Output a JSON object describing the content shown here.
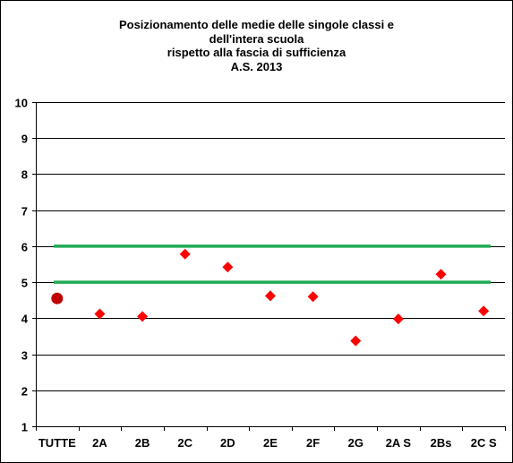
{
  "chart_data": {
    "type": "scatter",
    "title_lines": [
      "Posizionamento delle medie delle singole classi e",
      "dell'intera scuola",
      "rispetto alla fascia di sufficienza",
      "A.S. 2013"
    ],
    "xlabel": "",
    "ylabel": "",
    "ylim": [
      1,
      10
    ],
    "yticks": [
      1,
      2,
      3,
      4,
      5,
      6,
      7,
      8,
      9,
      10
    ],
    "grid": "horizontal",
    "legend": "none",
    "categories": [
      "TUTTE",
      "2A",
      "2B",
      "2C",
      "2D",
      "2E",
      "2F",
      "2G",
      "2A S",
      "2Bs",
      "2C S"
    ],
    "series": [
      {
        "marker": "circle",
        "color": "#C00000",
        "points": [
          {
            "x": "TUTTE",
            "y": 4.55
          }
        ]
      },
      {
        "marker": "diamond",
        "color": "#FF0000",
        "points": [
          {
            "x": "2A",
            "y": 4.12
          },
          {
            "x": "2B",
            "y": 4.05
          },
          {
            "x": "2C",
            "y": 5.78
          },
          {
            "x": "2D",
            "y": 5.42
          },
          {
            "x": "2E",
            "y": 4.62
          },
          {
            "x": "2F",
            "y": 4.6
          },
          {
            "x": "2G",
            "y": 3.37
          },
          {
            "x": "2A S",
            "y": 3.98
          },
          {
            "x": "2Bs",
            "y": 5.22
          },
          {
            "x": "2C S",
            "y": 4.2
          }
        ]
      }
    ],
    "reference_lines": [
      {
        "y": 6,
        "color": "#1EAA55"
      },
      {
        "y": 5,
        "color": "#1EAA55"
      }
    ]
  }
}
